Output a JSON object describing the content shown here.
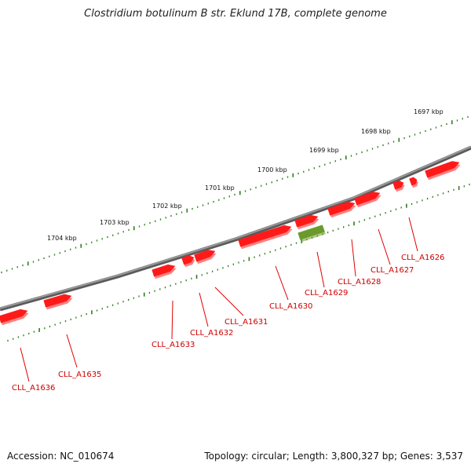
{
  "title": "Clostridium botulinum B str. Eklund 17B, complete genome",
  "footer": {
    "accession": "Accession: NC_010674",
    "summary": "Topology: circular; Length: 3,800,327 bp; Genes: 3,537"
  },
  "colors": {
    "backbone": "#7d7d7d",
    "gene_forward": "#ff1a1a",
    "gene_highlight": "#6b9a2a",
    "ruler": "#2e7d1e",
    "label": "#cc0000"
  },
  "ruler_labels": [
    {
      "text": "1697 kbp",
      "kbp": 1697
    },
    {
      "text": "1698 kbp",
      "kbp": 1698
    },
    {
      "text": "1699 kbp",
      "kbp": 1699
    },
    {
      "text": "1700 kbp",
      "kbp": 1700
    },
    {
      "text": "1701 kbp",
      "kbp": 1701
    },
    {
      "text": "1702 kbp",
      "kbp": 1702
    },
    {
      "text": "1703 kbp",
      "kbp": 1703
    },
    {
      "text": "1704 kbp",
      "kbp": 1704
    }
  ],
  "genes": [
    {
      "label": "CLL_A1626",
      "color": "#ff1a1a"
    },
    {
      "label": "CLL_A1627",
      "color": "#ff1a1a"
    },
    {
      "label": "CLL_A1628",
      "color": "#ff1a1a"
    },
    {
      "label": "CLL_A1629",
      "color": "#6b9a2a"
    },
    {
      "label": "CLL_A1630",
      "color": "#ff1a1a"
    },
    {
      "label": "CLL_A1631",
      "color": "#ff1a1a"
    },
    {
      "label": "CLL_A1632",
      "color": "#ff1a1a"
    },
    {
      "label": "CLL_A1633",
      "color": "#ff1a1a"
    },
    {
      "label": "CLL_A1635",
      "color": "#ff1a1a"
    },
    {
      "label": "CLL_A1636",
      "color": "#ff1a1a"
    }
  ]
}
